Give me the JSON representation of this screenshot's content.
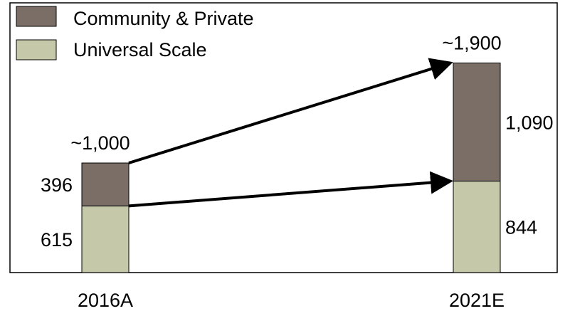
{
  "chart_data": {
    "type": "bar",
    "stacked": true,
    "categories": [
      "2016A",
      "2021E"
    ],
    "series": [
      {
        "name": "Universal Scale",
        "values": [
          615,
          844
        ],
        "color": "#c6c9a9"
      },
      {
        "name": "Community & Private",
        "values": [
          396,
          1090
        ],
        "color": "#7a6e66"
      }
    ],
    "value_labels": [
      [
        "615",
        "844"
      ],
      [
        "396",
        "1,090"
      ]
    ],
    "totals": [
      "~1,000",
      "~1,900"
    ],
    "title": "",
    "xlabel": "",
    "ylabel": "",
    "ylim": [
      0,
      2150
    ],
    "grid": false,
    "legend": "top-left",
    "arrows": "from the top of each 2016A segment to the top of the matching 2021E segment"
  }
}
